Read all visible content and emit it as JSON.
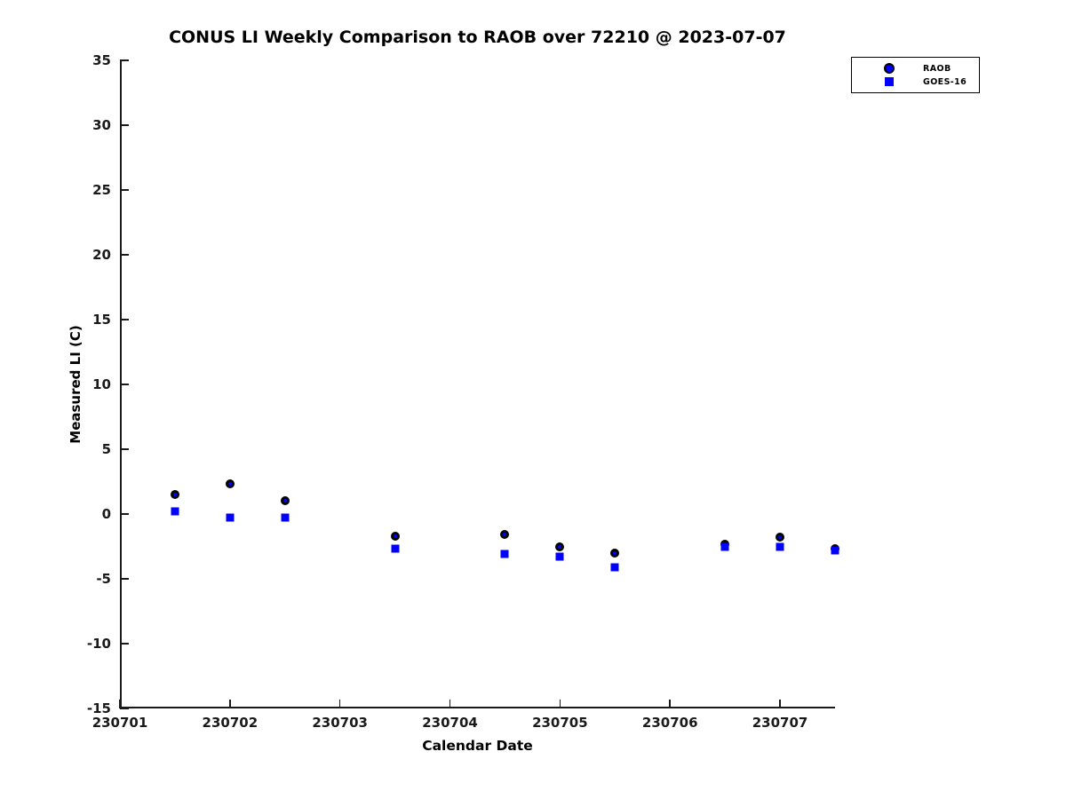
{
  "chart_data": {
    "type": "scatter",
    "title": "CONUS LI Weekly Comparison to RAOB over 72210 @ 2023-07-07",
    "xlabel": "Calendar Date",
    "ylabel": "Measured LI (C)",
    "xlim": [
      230701,
      230707.5
    ],
    "ylim": [
      -15,
      35
    ],
    "xticks": [
      230701,
      230702,
      230703,
      230704,
      230705,
      230706,
      230707
    ],
    "yticks": [
      35,
      30,
      25,
      20,
      15,
      10,
      5,
      0,
      -5,
      -10,
      -15
    ],
    "grid": false,
    "legend_position": "top-right",
    "series": [
      {
        "name": "RAOB",
        "marker": "circle",
        "color": "#0000ff",
        "edge_color": "#000000",
        "x": [
          230701.5,
          230702.0,
          230702.5,
          230703.5,
          230704.5,
          230705.0,
          230705.5,
          230706.5,
          230707.0,
          230707.5
        ],
        "y": [
          1.5,
          2.3,
          1.0,
          -1.7,
          -1.6,
          -2.5,
          -3.0,
          -2.3,
          -1.8,
          -2.7
        ]
      },
      {
        "name": "GOES-16",
        "marker": "square",
        "color": "#0000ff",
        "x": [
          230701.5,
          230702.0,
          230702.5,
          230703.5,
          230704.5,
          230705.0,
          230705.5,
          230706.5,
          230707.0,
          230707.5
        ],
        "y": [
          0.2,
          -0.3,
          -0.3,
          -2.7,
          -3.1,
          -3.3,
          -4.1,
          -2.5,
          -2.5,
          -2.8
        ]
      }
    ]
  }
}
